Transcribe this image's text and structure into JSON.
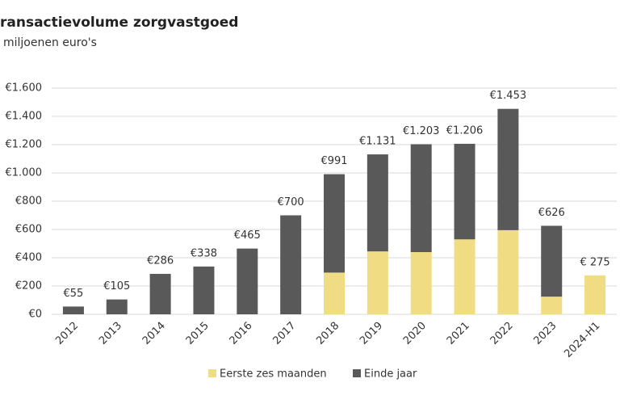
{
  "chart_data": {
    "type": "stacked_bar",
    "title": "ransactievolume zorgvastgoed",
    "subtitle": "miljoenen euro's",
    "categories": [
      "2012",
      "2013",
      "2014",
      "2015",
      "2016",
      "2017",
      "2018",
      "2019",
      "2020",
      "2021",
      "2022",
      "2023",
      "2024-H1"
    ],
    "series": [
      {
        "name": "Eerste zes maanden",
        "color": "#f0dc82",
        "values": [
          null,
          null,
          null,
          null,
          null,
          null,
          295,
          445,
          440,
          530,
          595,
          125,
          275
        ]
      },
      {
        "name": "Einde jaar",
        "color": "#595959",
        "values": [
          55,
          105,
          286,
          338,
          465,
          700,
          696,
          686,
          763,
          676,
          858,
          501,
          null
        ]
      }
    ],
    "totals": {
      "values": [
        55,
        105,
        286,
        338,
        465,
        700,
        991,
        1131,
        1203,
        1206,
        1453,
        626,
        275
      ],
      "value_labels": [
        "€55",
        "€105",
        "€286",
        "€338",
        "€465",
        "€700",
        "€991",
        "€1.131",
        "€1.203",
        "€1.206",
        "€1.453",
        "€626",
        "€ 275"
      ]
    },
    "ylim": [
      0,
      1600
    ],
    "yticks": [
      {
        "value": 0,
        "label": "€0"
      },
      {
        "value": 200,
        "label": "€200"
      },
      {
        "value": 400,
        "label": "€400"
      },
      {
        "value": 600,
        "label": "€600"
      },
      {
        "value": 800,
        "label": "€800"
      },
      {
        "value": 1000,
        "label": "€1.000"
      },
      {
        "value": 1200,
        "label": "€1.200"
      },
      {
        "value": 1400,
        "label": "€1.400"
      },
      {
        "value": 1600,
        "label": "€1.600"
      }
    ],
    "grid": true
  }
}
